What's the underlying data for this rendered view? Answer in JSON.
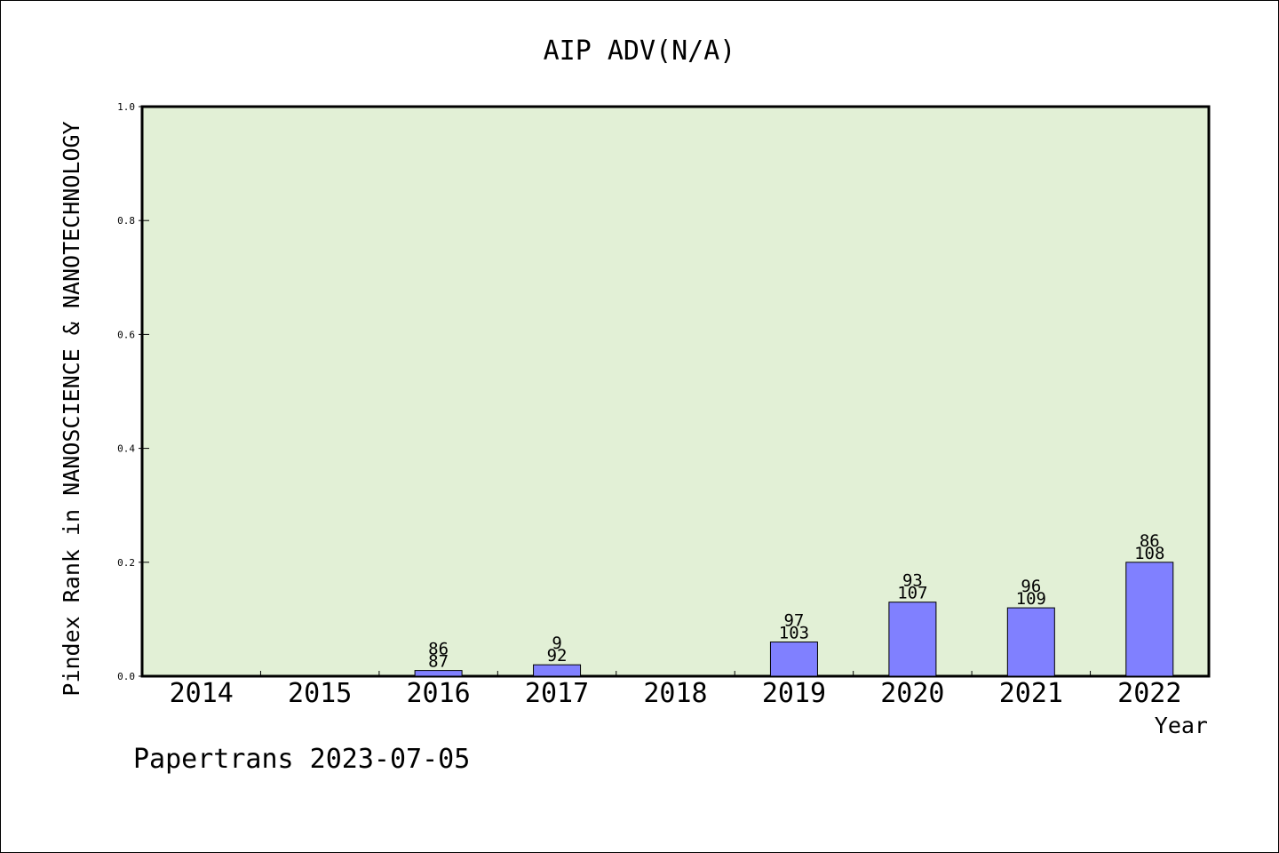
{
  "chart_data": {
    "type": "bar",
    "title": "AIP ADV(N/A)",
    "xlabel": "Year",
    "ylabel": "Pindex Rank in NANOSCIENCE & NANOTECHNOLOGY",
    "categories": [
      "2014",
      "2015",
      "2016",
      "2017",
      "2018",
      "2019",
      "2020",
      "2021",
      "2022"
    ],
    "values": [
      0,
      0,
      0.01,
      0.02,
      0,
      0.06,
      0.13,
      0.12,
      0.2
    ],
    "bar_labels_top": [
      "",
      "",
      "86",
      "9",
      "",
      "97",
      "93",
      "96",
      "86"
    ],
    "bar_labels_bottom": [
      "",
      "",
      "87",
      "92",
      "",
      "103",
      "107",
      "109",
      "108"
    ],
    "ylim": [
      0,
      1.0
    ],
    "yticks": [
      "0.0",
      "0.2",
      "0.4",
      "0.6",
      "0.8",
      "1.0"
    ],
    "grid": false,
    "colors": {
      "plot_background": "#e2f0d6",
      "bar_fill": "#8080ff",
      "bar_stroke": "#000000"
    }
  },
  "footer": {
    "watermark": "Papertrans 2023-07-05"
  }
}
